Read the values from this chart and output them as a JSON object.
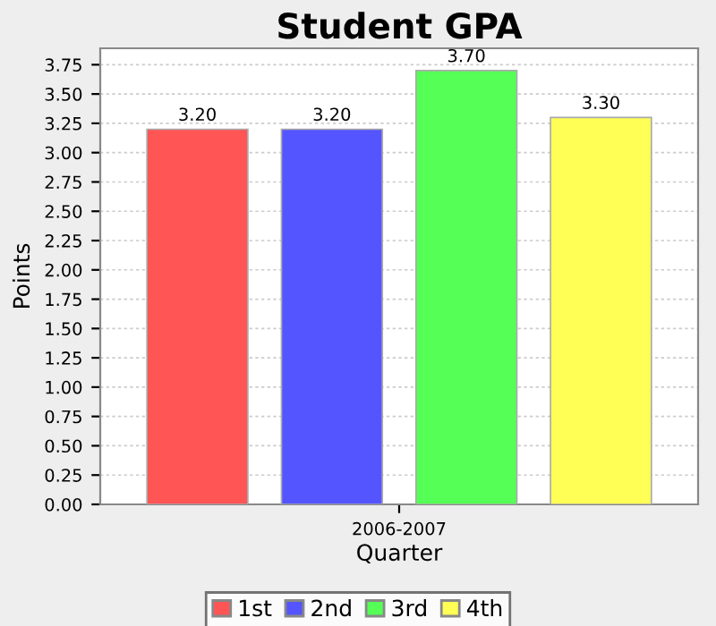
{
  "chart_data": {
    "type": "bar",
    "title": "Student GPA",
    "xlabel": "Quarter",
    "ylabel": "Points",
    "categories": [
      "2006-2007"
    ],
    "series": [
      {
        "name": "1st",
        "color": "#ff5555",
        "values": [
          3.2
        ],
        "value_labels": [
          "3.20"
        ]
      },
      {
        "name": "2nd",
        "color": "#5555ff",
        "values": [
          3.2
        ],
        "value_labels": [
          "3.20"
        ]
      },
      {
        "name": "3rd",
        "color": "#55ff55",
        "values": [
          3.7
        ],
        "value_labels": [
          "3.70"
        ]
      },
      {
        "name": "4th",
        "color": "#ffff55",
        "values": [
          3.3
        ],
        "value_labels": [
          "3.30"
        ]
      }
    ],
    "ylim": [
      0,
      3.89
    ],
    "yticks": [
      {
        "value": 0,
        "label": "0.00"
      },
      {
        "value": 0.25,
        "label": "0.25"
      },
      {
        "value": 0.5,
        "label": "0.50"
      },
      {
        "value": 0.75,
        "label": "0.75"
      },
      {
        "value": 1,
        "label": "1.00"
      },
      {
        "value": 1.25,
        "label": "1.25"
      },
      {
        "value": 1.5,
        "label": "1.50"
      },
      {
        "value": 1.75,
        "label": "1.75"
      },
      {
        "value": 2,
        "label": "2.00"
      },
      {
        "value": 2.25,
        "label": "2.25"
      },
      {
        "value": 2.5,
        "label": "2.50"
      },
      {
        "value": 2.75,
        "label": "2.75"
      },
      {
        "value": 3,
        "label": "3.00"
      },
      {
        "value": 3.25,
        "label": "3.25"
      },
      {
        "value": 3.5,
        "label": "3.50"
      },
      {
        "value": 3.75,
        "label": "3.75"
      }
    ],
    "grid": "y",
    "legend": "bottom"
  }
}
